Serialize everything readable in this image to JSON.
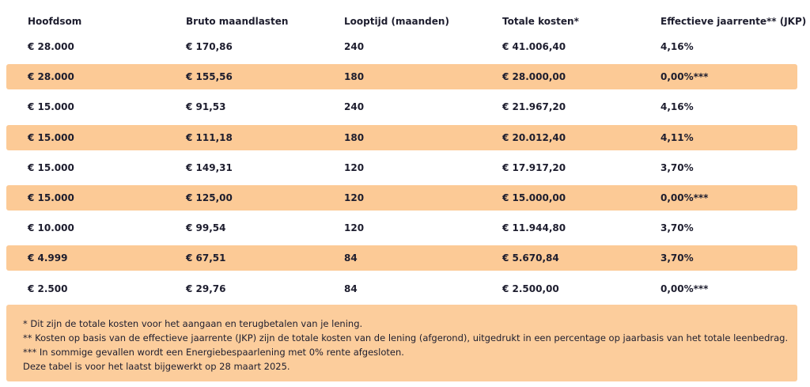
{
  "table": {
    "headers": [
      "Hoofdsom",
      "Bruto maandlasten",
      "Looptijd (maanden)",
      "Totale kosten*",
      "Effectieve jaarrente** (JKP)"
    ],
    "rows": [
      [
        "€ 28.000",
        "€ 170,86",
        "240",
        "€ 41.006,40",
        "4,16%"
      ],
      [
        "€ 28.000",
        "€ 155,56",
        "180",
        "€ 28.000,00",
        "0,00%***"
      ],
      [
        "€ 15.000",
        "€ 91,53",
        "240",
        "€ 21.967,20",
        "4,16%"
      ],
      [
        "€ 15.000",
        "€ 111,18",
        "180",
        "€ 20.012,40",
        "4,11%"
      ],
      [
        "€ 15.000",
        "€ 149,31",
        "120",
        "€ 17.917,20",
        "3,70%"
      ],
      [
        "€ 15.000",
        "€ 125,00",
        "120",
        "€ 15.000,00",
        "0,00%***"
      ],
      [
        "€ 10.000",
        "€ 99,54",
        "120",
        "€ 11.944,80",
        "3,70%"
      ],
      [
        "€ 4.999",
        "€ 67,51",
        "84",
        "€ 5.670,84",
        "3,70%"
      ],
      [
        "€ 2.500",
        "€ 29,76",
        "84",
        "€ 2.500,00",
        "0,00%***"
      ]
    ]
  },
  "footnotes": [
    "* Dit zijn de totale kosten voor het aangaan en terugbetalen van je lening.",
    "** Kosten op basis van de effectieve jaarrente (JKP) zijn de totale kosten van de lening (afgerond), uitgedrukt in een percentage op jaarbasis van het totale leenbedrag.",
    "*** In sommige gevallen wordt een Energiebespaarlening met 0% rente afgesloten.",
    "Deze tabel is voor het laatst bijgewerkt op 28 maart 2025."
  ]
}
